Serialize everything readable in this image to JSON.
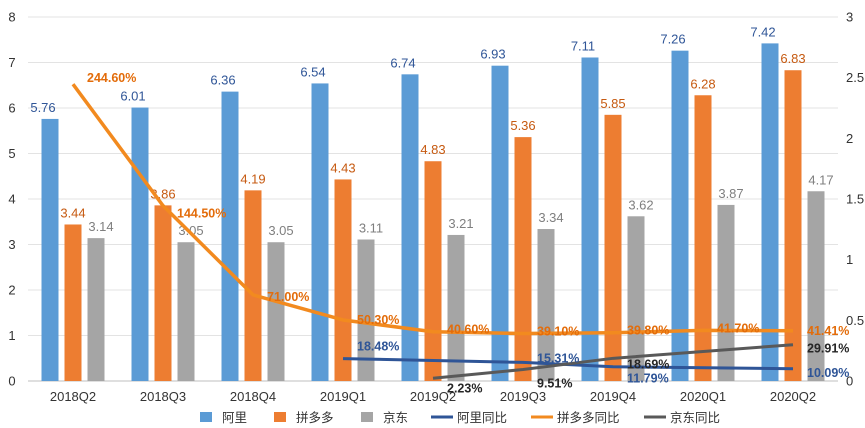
{
  "chart_data": {
    "type": "bar",
    "title": "",
    "categories": [
      "2018Q2",
      "2018Q3",
      "2018Q4",
      "2019Q1",
      "2019Q2",
      "2019Q3",
      "2019Q4",
      "2020Q1",
      "2020Q2"
    ],
    "left_axis": {
      "ylim": [
        0,
        8
      ],
      "ticks": [
        "0",
        "1",
        "2",
        "3",
        "4",
        "5",
        "6",
        "7",
        "8"
      ]
    },
    "right_axis": {
      "ylim": [
        0,
        3
      ],
      "ticks": [
        "0",
        "0.5",
        "1",
        "1.5",
        "2",
        "2.5",
        "3"
      ]
    },
    "series": [
      {
        "name": "阿里",
        "kind": "bar",
        "axis": "left",
        "color": "#5b9bd5",
        "values": [
          5.76,
          6.01,
          6.36,
          6.54,
          6.74,
          6.93,
          7.11,
          7.26,
          7.42
        ],
        "labels": [
          "5.76",
          "6.01",
          "6.36",
          "6.54",
          "6.74",
          "6.93",
          "7.11",
          "7.26",
          "7.42"
        ]
      },
      {
        "name": "拼多多",
        "kind": "bar",
        "axis": "left",
        "color": "#ed7d31",
        "values": [
          3.44,
          3.86,
          4.19,
          4.43,
          4.83,
          5.36,
          5.85,
          6.28,
          6.83
        ],
        "labels": [
          "3.44",
          "3.86",
          "4.19",
          "4.43",
          "4.83",
          "5.36",
          "5.85",
          "6.28",
          "6.83"
        ]
      },
      {
        "name": "京东",
        "kind": "bar",
        "axis": "left",
        "color": "#a5a5a5",
        "values": [
          3.14,
          3.05,
          3.05,
          3.11,
          3.21,
          3.34,
          3.62,
          3.87,
          4.17
        ],
        "labels": [
          "3.14",
          "3.05",
          "3.05",
          "3.11",
          "3.21",
          "3.34",
          "3.62",
          "3.87",
          "4.17"
        ]
      },
      {
        "name": "阿里同比",
        "kind": "line",
        "axis": "right",
        "color": "#2f5597",
        "values": [
          null,
          null,
          null,
          0.1848,
          null,
          0.1531,
          0.1179,
          null,
          0.1009
        ],
        "labels": [
          null,
          null,
          null,
          "18.48%",
          null,
          "15.31%",
          "11.79%",
          null,
          "10.09%"
        ]
      },
      {
        "name": "拼多多同比",
        "kind": "line",
        "axis": "right",
        "color": "#f28a1f",
        "values": [
          2.446,
          1.445,
          0.71,
          0.503,
          0.406,
          0.391,
          0.398,
          0.417,
          0.4141
        ],
        "labels": [
          "244.60%",
          "144.50%",
          "71.00%",
          "50.30%",
          "40.60%",
          "39.10%",
          "39.80%",
          "41.70%",
          "41.41%"
        ]
      },
      {
        "name": "京东同比",
        "kind": "line",
        "axis": "right",
        "color": "#595959",
        "values": [
          null,
          null,
          null,
          null,
          0.0223,
          0.0951,
          0.1869,
          null,
          0.2991
        ],
        "labels": [
          null,
          null,
          null,
          null,
          "2.23%",
          "9.51%",
          "18.69%",
          null,
          "29.91%"
        ]
      }
    ],
    "legend_position": "bottom",
    "grid": true
  }
}
